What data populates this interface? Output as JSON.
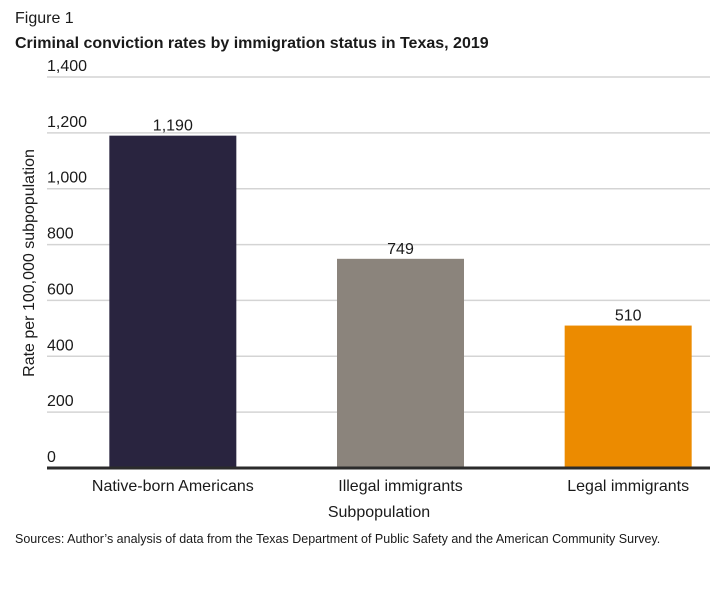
{
  "figure_label": "Figure 1",
  "source_note": "Sources: Author’s analysis of data from the Texas Department of Public Safety and the American Community Survey.",
  "chart_data": {
    "type": "bar",
    "title": "Criminal conviction rates by immigration status in Texas, 2019",
    "categories": [
      "Native-born Americans",
      "Illegal immigrants",
      "Legal immigrants"
    ],
    "values": [
      1190,
      749,
      510
    ],
    "data_labels": [
      "1,190",
      "749",
      "510"
    ],
    "colors": [
      "#29243f",
      "#8b847c",
      "#ec8b00"
    ],
    "xlabel": "Subpopulation",
    "ylabel": "Rate per 100,000 subpopulation",
    "ylim": [
      0,
      1400
    ],
    "yticks": [
      0,
      200,
      400,
      600,
      800,
      1000,
      1200,
      1400
    ],
    "ytick_labels": [
      "0",
      "200",
      "400",
      "600",
      "800",
      "1,000",
      "1,200",
      "1,400"
    ],
    "grid": true,
    "legend": "none"
  }
}
